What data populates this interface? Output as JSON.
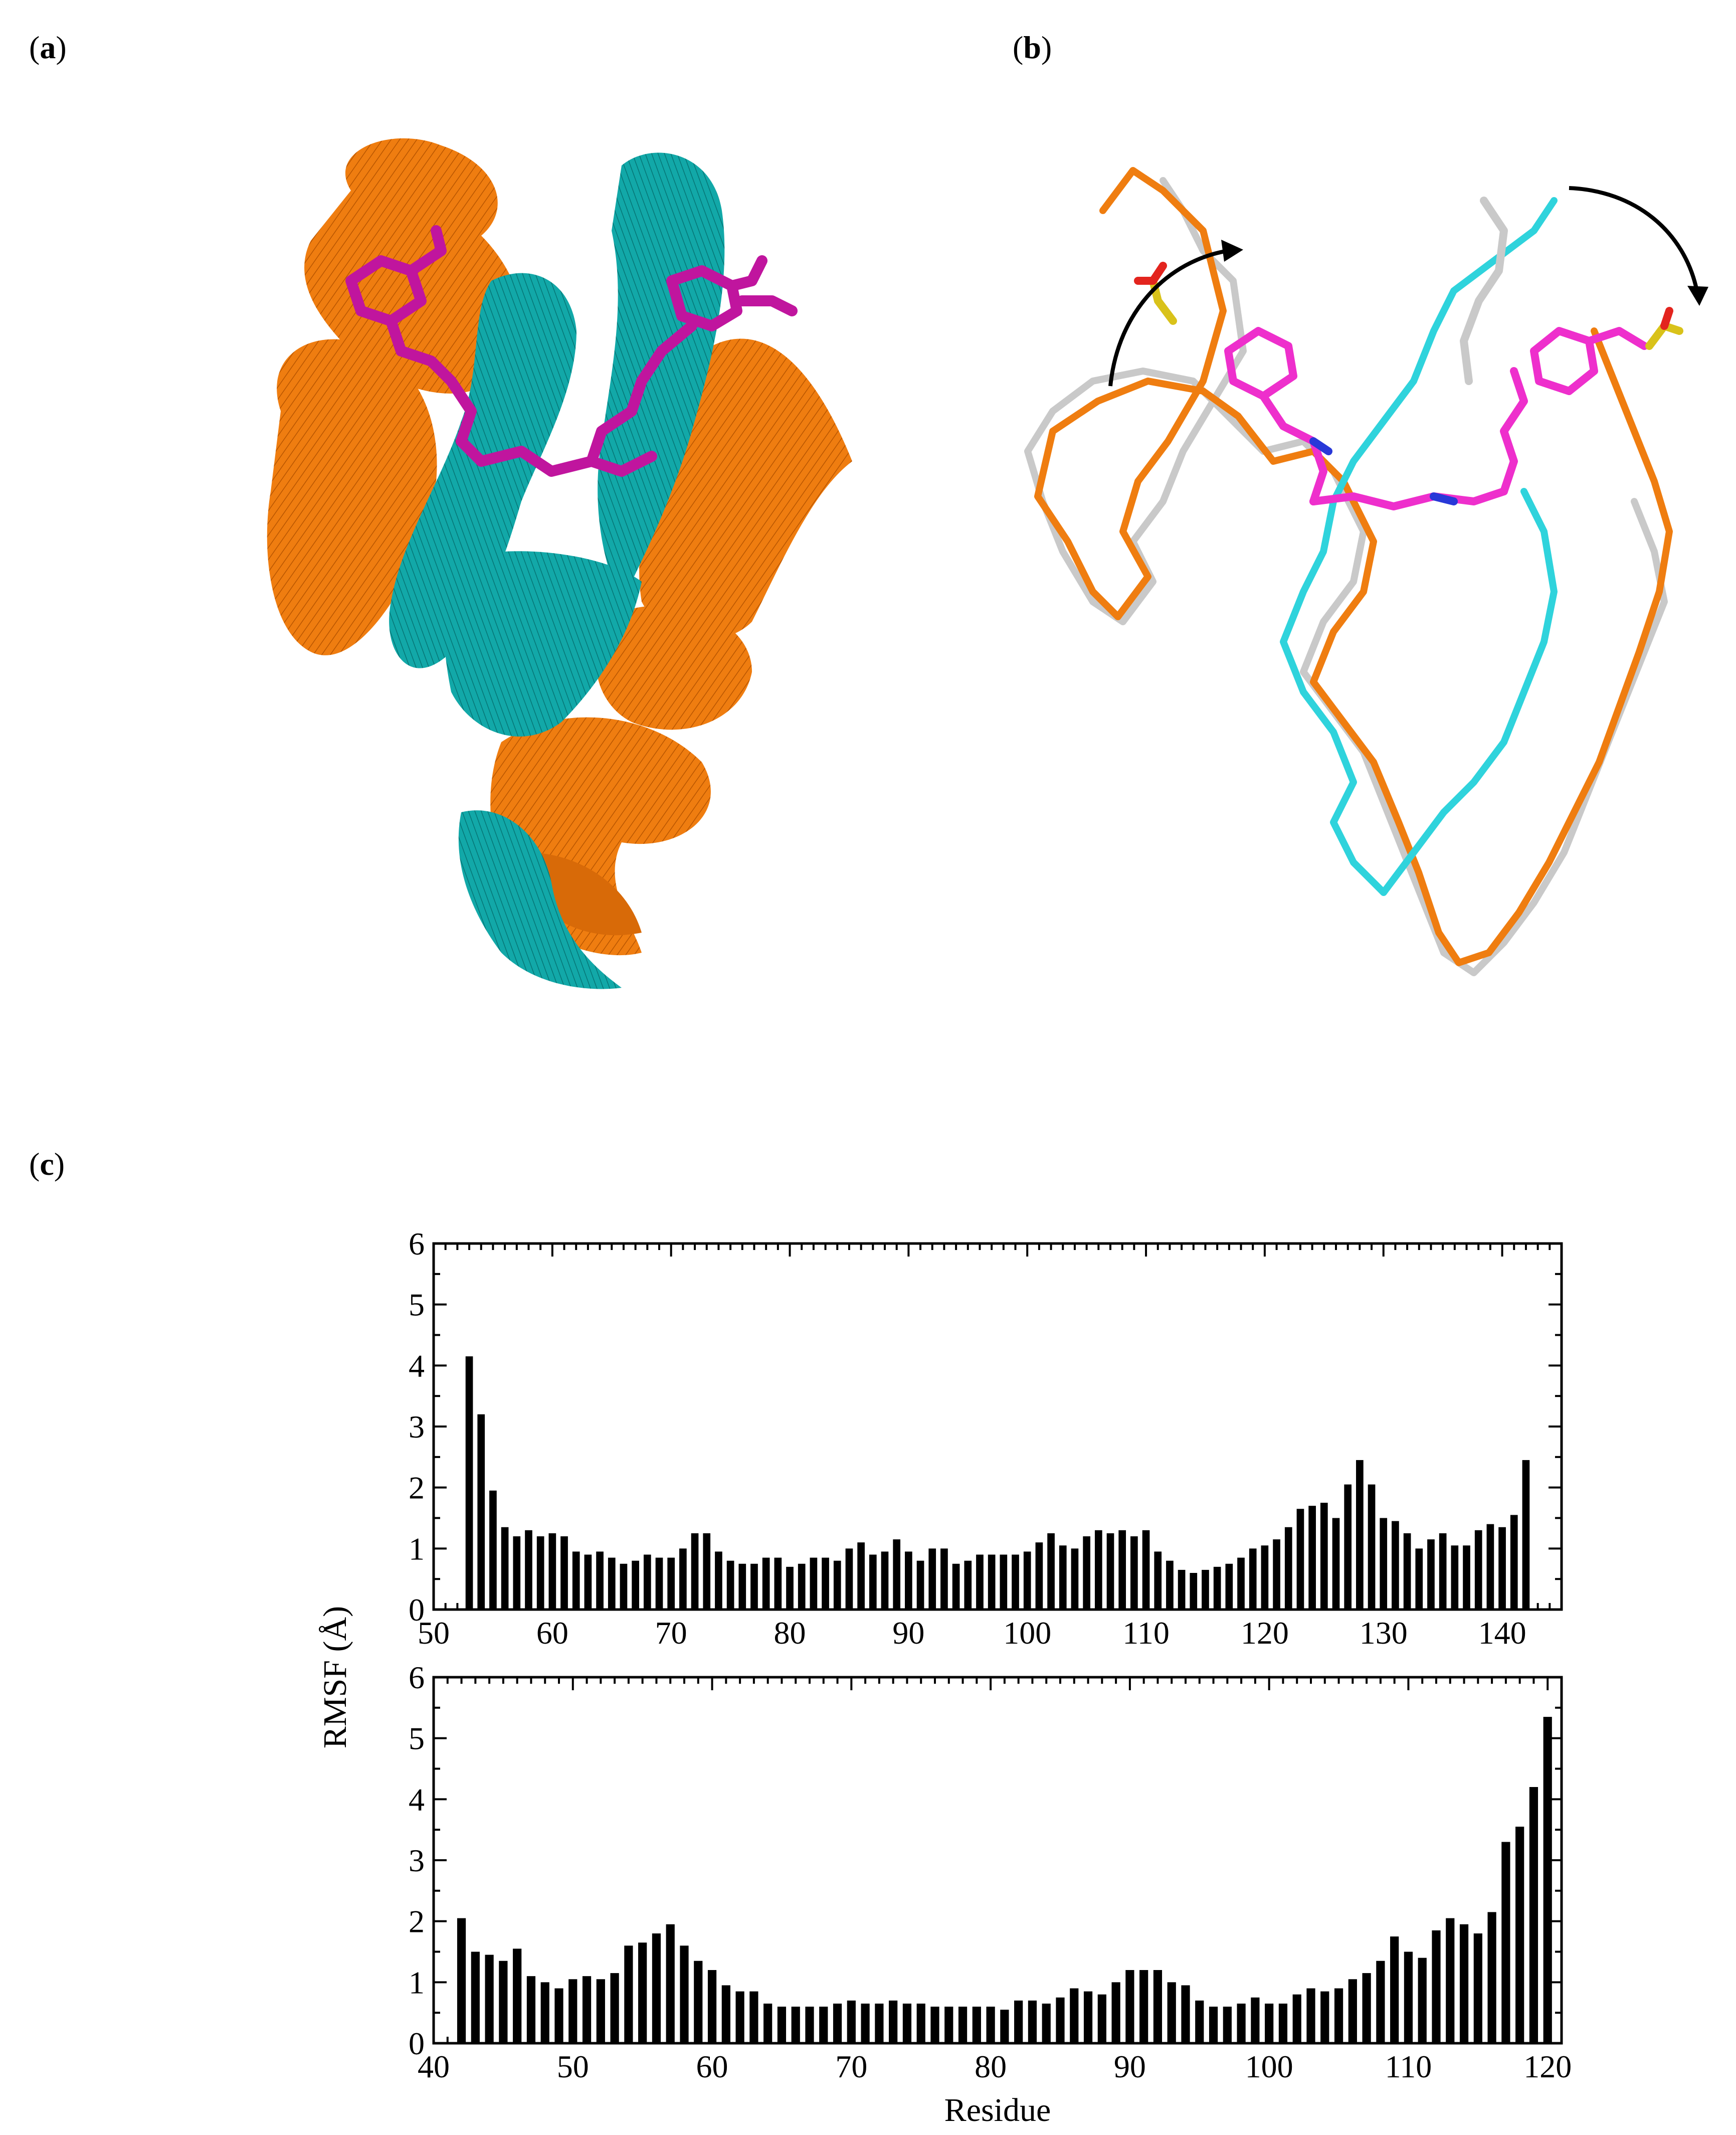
{
  "figure": {
    "panel_labels": {
      "a": "a",
      "b": "b",
      "c": "c"
    }
  },
  "colors": {
    "chain_orange": "#ef7d10",
    "chain_teal": "#12a8a8",
    "chain_cyan": "#2fd3dc",
    "reference_gray": "#c9c9c9",
    "ligand_magenta": "#c0159e",
    "ligand_pink": "#ee2fcc",
    "sulfur_yellow": "#d9c21a",
    "oxygen_red": "#e3241e",
    "nitrogen_blue": "#2838d8",
    "bar_color": "#000000"
  },
  "chart_data": [
    {
      "type": "bar",
      "ylabel": "RMSF (Å)",
      "xlabel": "",
      "xlim": [
        50,
        145
      ],
      "ylim": [
        0,
        6
      ],
      "xticks": [
        50,
        60,
        70,
        80,
        90,
        100,
        110,
        120,
        130,
        140
      ],
      "yticks": [
        0,
        1,
        2,
        3,
        4,
        5,
        6
      ],
      "x_start": 53,
      "values": [
        4.15,
        3.2,
        1.95,
        1.35,
        1.2,
        1.3,
        1.2,
        1.25,
        1.2,
        0.95,
        0.9,
        0.95,
        0.85,
        0.75,
        0.8,
        0.9,
        0.85,
        0.85,
        1.0,
        1.25,
        1.25,
        0.95,
        0.8,
        0.75,
        0.75,
        0.85,
        0.85,
        0.7,
        0.75,
        0.85,
        0.85,
        0.8,
        1.0,
        1.1,
        0.9,
        0.95,
        1.15,
        0.95,
        0.8,
        1.0,
        1.0,
        0.75,
        0.8,
        0.9,
        0.9,
        0.9,
        0.9,
        0.95,
        1.1,
        1.25,
        1.05,
        1.0,
        1.2,
        1.3,
        1.25,
        1.3,
        1.2,
        1.3,
        0.95,
        0.8,
        0.65,
        0.6,
        0.65,
        0.7,
        0.75,
        0.85,
        1.0,
        1.05,
        1.15,
        1.35,
        1.65,
        1.7,
        1.75,
        1.5,
        2.05,
        2.45,
        2.05,
        1.5,
        1.45,
        1.25,
        1.0,
        1.15,
        1.25,
        1.05,
        1.05,
        1.3,
        1.4,
        1.35,
        1.55,
        2.45
      ]
    },
    {
      "type": "bar",
      "ylabel": "",
      "xlabel": "Residue",
      "xlim": [
        40,
        121
      ],
      "ylim": [
        0,
        6
      ],
      "xticks": [
        40,
        50,
        60,
        70,
        80,
        90,
        100,
        110,
        120
      ],
      "yticks": [
        0,
        1,
        2,
        3,
        4,
        5,
        6
      ],
      "x_start": 42,
      "values": [
        2.05,
        1.5,
        1.45,
        1.35,
        1.55,
        1.1,
        1.0,
        0.9,
        1.05,
        1.1,
        1.05,
        1.15,
        1.6,
        1.65,
        1.8,
        1.95,
        1.6,
        1.35,
        1.2,
        0.95,
        0.85,
        0.85,
        0.65,
        0.6,
        0.6,
        0.6,
        0.6,
        0.65,
        0.7,
        0.65,
        0.65,
        0.7,
        0.65,
        0.65,
        0.6,
        0.6,
        0.6,
        0.6,
        0.6,
        0.55,
        0.7,
        0.7,
        0.65,
        0.75,
        0.9,
        0.85,
        0.8,
        1.0,
        1.2,
        1.2,
        1.2,
        1.0,
        0.95,
        0.7,
        0.6,
        0.6,
        0.65,
        0.75,
        0.65,
        0.65,
        0.8,
        0.9,
        0.85,
        0.9,
        1.05,
        1.15,
        1.35,
        1.75,
        1.5,
        1.4,
        1.85,
        2.05,
        1.95,
        1.8,
        2.15,
        3.3,
        3.55,
        4.2,
        5.35
      ]
    }
  ]
}
